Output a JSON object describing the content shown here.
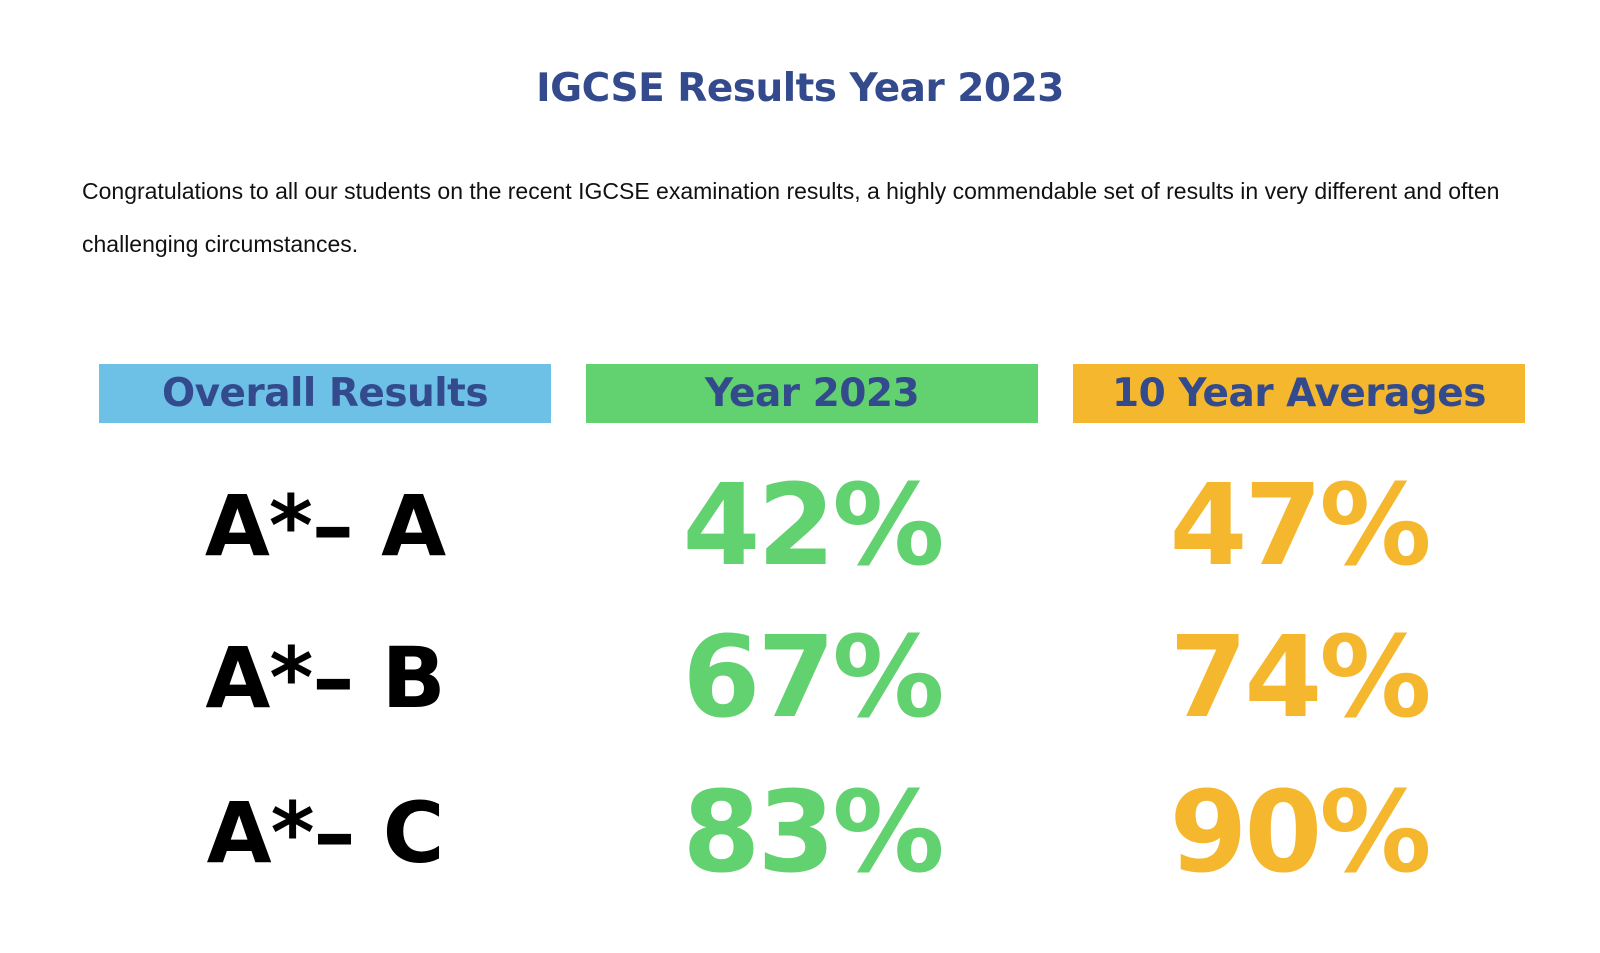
{
  "title": "IGCSE Results Year 2023",
  "intro": "Congratulations to all our students on the recent IGCSE examination results, a highly commendable set of results in very different and often challenging circumstances.",
  "headers": {
    "overall": "Overall Results",
    "year": "Year 2023",
    "average": "10 Year Averages"
  },
  "rows": [
    {
      "grade": "A*– A",
      "year": "42%",
      "average": "47%"
    },
    {
      "grade": "A*– B",
      "year": "67%",
      "average": "74%"
    },
    {
      "grade": "A*– C",
      "year": "83%",
      "average": "90%"
    }
  ],
  "colors": {
    "title": "#334a8c",
    "overall_header_bg": "#6dc0e6",
    "year_accent": "#62d170",
    "average_accent": "#f5b72d"
  }
}
